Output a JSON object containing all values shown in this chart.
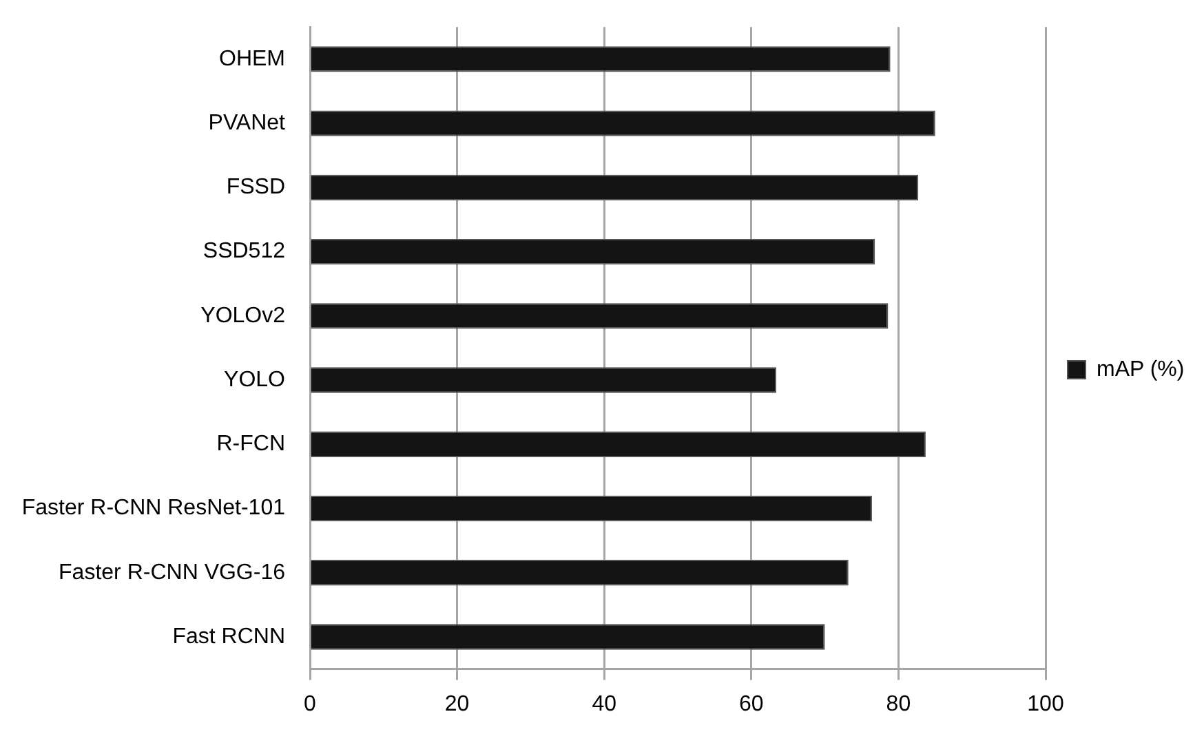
{
  "chart_data": {
    "type": "bar",
    "orientation": "horizontal",
    "categories": [
      "OHEM",
      "PVANet",
      "FSSD",
      "SSD512",
      "YOLOv2",
      "YOLO",
      "R-FCN",
      "Faster R-CNN ResNet-101",
      "Faster R-CNN VGG-16",
      "Fast RCNN"
    ],
    "series": [
      {
        "name": "mAP (%)",
        "color": "#141414",
        "values": [
          78.9,
          85.0,
          82.7,
          76.8,
          78.6,
          63.4,
          83.7,
          76.4,
          73.2,
          70.0
        ]
      }
    ],
    "xlim": [
      0,
      100
    ],
    "xticks": [
      0,
      20,
      40,
      60,
      80,
      100
    ],
    "grid": "x",
    "legend": "right"
  }
}
